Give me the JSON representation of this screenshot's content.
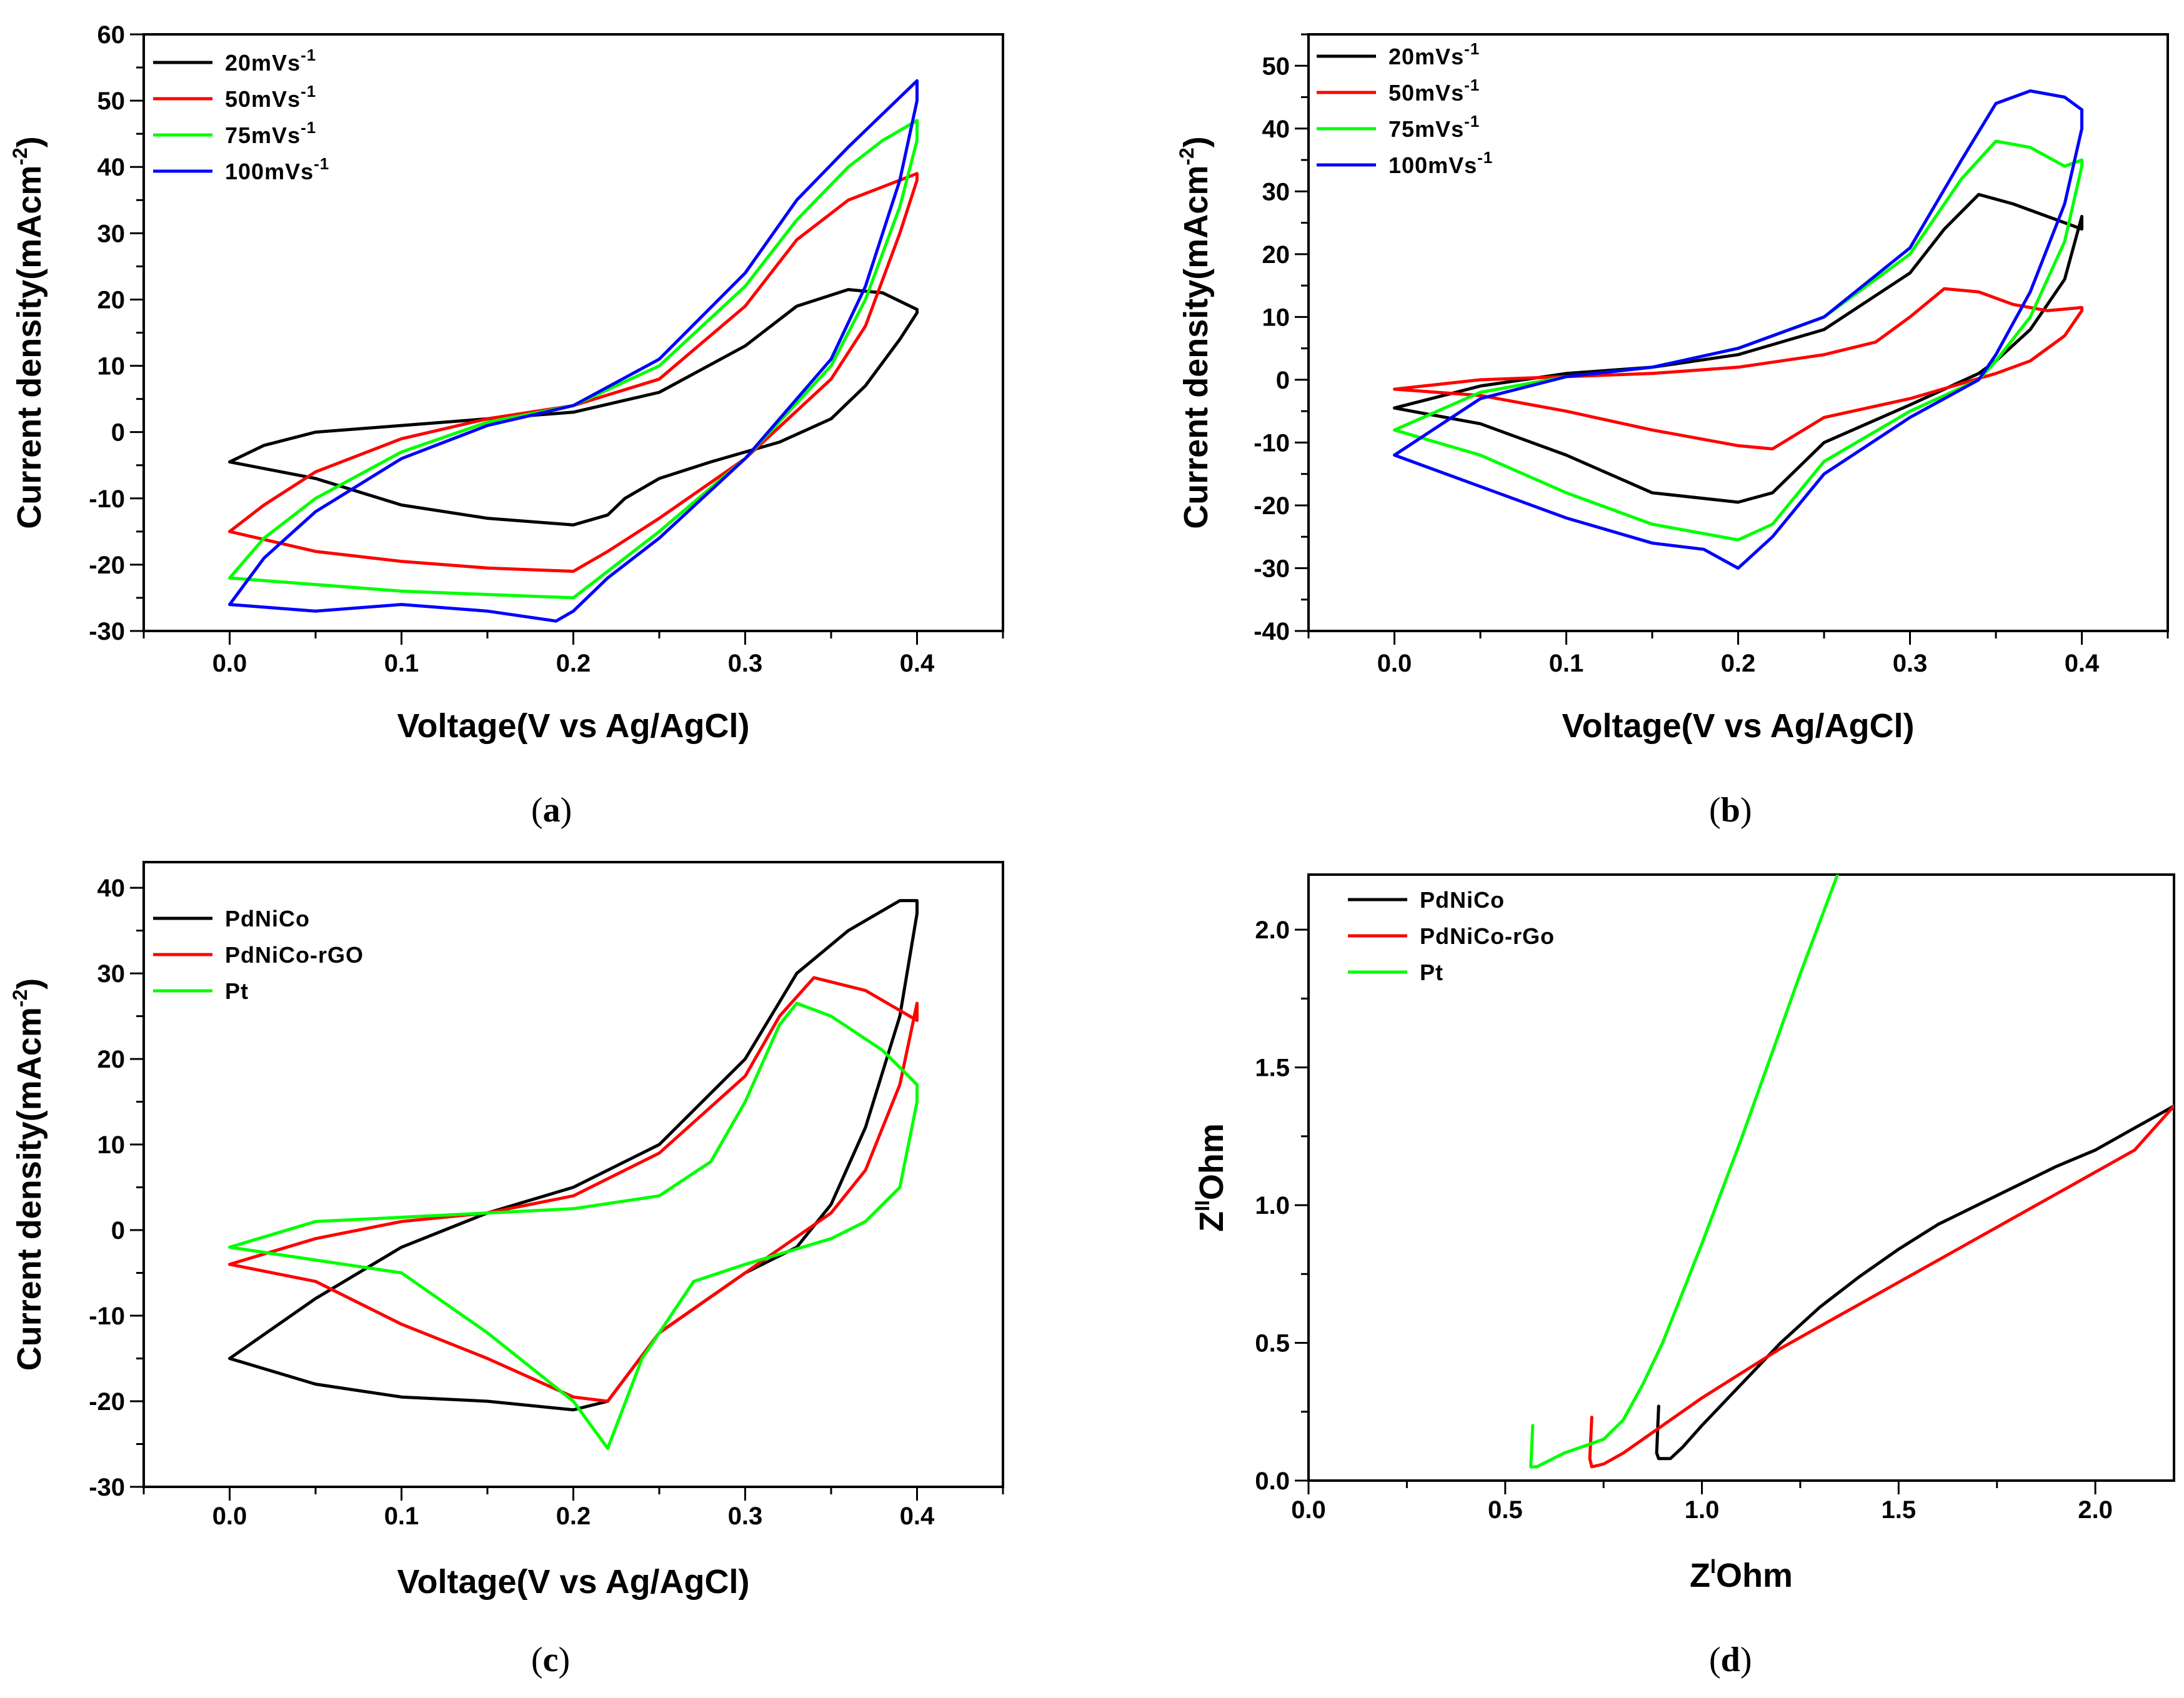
{
  "figure_captions": [
    "a",
    "b",
    "c",
    "d"
  ],
  "chart_data": [
    {
      "id": "a",
      "type": "line",
      "caption": "a",
      "xlabel": "Voltage(V vs Ag/AgCl)",
      "ylabel": "Current density(mAcm",
      "ylabel_sup": "-2",
      "ylabel_close": ")",
      "xlim": [
        -0.05,
        0.45
      ],
      "ylim": [
        -30,
        60
      ],
      "xticks": [
        0.0,
        0.1,
        0.2,
        0.3,
        0.4
      ],
      "xtick_labels": [
        "0.0",
        "0.1",
        "0.2",
        "0.3",
        "0.4"
      ],
      "yticks": [
        -30,
        -20,
        -10,
        0,
        10,
        20,
        30,
        40,
        50,
        60
      ],
      "ytick_labels": [
        "-30",
        "-20",
        "-10",
        "0",
        "10",
        "20",
        "30",
        "40",
        "50",
        "60"
      ],
      "grid": false,
      "legend_position": "top-left",
      "series": [
        {
          "name": "20mVs",
          "sup": "-1",
          "color": "#000000",
          "x": [
            0.0,
            0.02,
            0.05,
            0.1,
            0.15,
            0.2,
            0.25,
            0.3,
            0.33,
            0.36,
            0.38,
            0.4,
            0.4,
            0.39,
            0.37,
            0.35,
            0.32,
            0.3,
            0.28,
            0.25,
            0.23,
            0.22,
            0.2,
            0.15,
            0.1,
            0.05,
            0.0
          ],
          "y": [
            -4.5,
            -2,
            0,
            1,
            2,
            3,
            6,
            13,
            19,
            21.5,
            21,
            18.5,
            18,
            14,
            7,
            2,
            -1.5,
            -3,
            -4.5,
            -7,
            -10,
            -12.5,
            -14,
            -13,
            -11,
            -7,
            -4.5
          ]
        },
        {
          "name": "50mVs",
          "sup": "-1",
          "color": "#ff0000",
          "x": [
            0.0,
            0.02,
            0.05,
            0.1,
            0.15,
            0.2,
            0.25,
            0.3,
            0.33,
            0.36,
            0.38,
            0.4,
            0.4,
            0.39,
            0.37,
            0.35,
            0.3,
            0.25,
            0.22,
            0.2,
            0.15,
            0.1,
            0.05,
            0.0
          ],
          "y": [
            -15,
            -11,
            -6,
            -1,
            2,
            4,
            8,
            19,
            29,
            35,
            37,
            39,
            38,
            30,
            16,
            8,
            -4,
            -13,
            -18,
            -21,
            -20.5,
            -19.5,
            -18,
            -15
          ]
        },
        {
          "name": "75mVs",
          "sup": "-1",
          "color": "#00ff00",
          "x": [
            0.0,
            0.02,
            0.05,
            0.1,
            0.15,
            0.2,
            0.25,
            0.3,
            0.33,
            0.36,
            0.38,
            0.4,
            0.4,
            0.39,
            0.37,
            0.35,
            0.3,
            0.25,
            0.22,
            0.2,
            0.15,
            0.1,
            0.05,
            0.0
          ],
          "y": [
            -22,
            -16,
            -10,
            -3,
            1.5,
            4,
            10,
            22,
            32,
            40,
            44,
            47,
            44,
            34,
            20,
            10,
            -4,
            -15,
            -21,
            -25,
            -24.5,
            -24,
            -23,
            -22
          ]
        },
        {
          "name": "100mVs",
          "sup": "-1",
          "color": "#0000ff",
          "x": [
            0.0,
            0.02,
            0.05,
            0.1,
            0.15,
            0.2,
            0.25,
            0.3,
            0.33,
            0.36,
            0.38,
            0.4,
            0.4,
            0.39,
            0.37,
            0.35,
            0.3,
            0.25,
            0.22,
            0.2,
            0.19,
            0.15,
            0.1,
            0.05,
            0.0
          ],
          "y": [
            -26,
            -19,
            -12,
            -4,
            1,
            4,
            11,
            24,
            35,
            43,
            48,
            53,
            50,
            38,
            22,
            11,
            -4,
            -16,
            -22,
            -27,
            -28.5,
            -27,
            -26,
            -27,
            -26
          ]
        }
      ]
    },
    {
      "id": "b",
      "type": "line",
      "caption": "b",
      "xlabel": "Voltage(V vs Ag/AgCl)",
      "ylabel": "Current density(mAcm",
      "ylabel_sup": "-2",
      "ylabel_close": ")",
      "xlim": [
        -0.05,
        0.45
      ],
      "ylim": [
        -40,
        55
      ],
      "xticks": [
        0.0,
        0.1,
        0.2,
        0.3,
        0.4
      ],
      "xtick_labels": [
        "0.0",
        "0.1",
        "0.2",
        "0.3",
        "0.4"
      ],
      "yticks": [
        -40,
        -30,
        -20,
        -10,
        0,
        10,
        20,
        30,
        40,
        50
      ],
      "ytick_labels": [
        "-40",
        "-30",
        "-20",
        "-10",
        "0",
        "10",
        "20",
        "30",
        "40",
        "50"
      ],
      "grid": false,
      "legend_position": "top-left",
      "series": [
        {
          "name": "20mVs",
          "sup": "-1",
          "color": "#000000",
          "x": [
            0.0,
            0.05,
            0.1,
            0.15,
            0.2,
            0.25,
            0.3,
            0.32,
            0.34,
            0.36,
            0.38,
            0.4,
            0.4,
            0.39,
            0.37,
            0.35,
            0.34,
            0.3,
            0.25,
            0.22,
            0.2,
            0.15,
            0.1,
            0.05,
            0.0
          ],
          "y": [
            -4.5,
            -1,
            1,
            2,
            4,
            8,
            17,
            24,
            29.5,
            28,
            26,
            24,
            26,
            16,
            8,
            3,
            1,
            -4,
            -10,
            -18,
            -19.5,
            -18,
            -12,
            -7,
            -4.5
          ]
        },
        {
          "name": "50mVs",
          "sup": "-1",
          "color": "#ff0000",
          "x": [
            0.0,
            0.05,
            0.1,
            0.15,
            0.2,
            0.25,
            0.28,
            0.3,
            0.32,
            0.34,
            0.36,
            0.38,
            0.4,
            0.4,
            0.39,
            0.37,
            0.35,
            0.3,
            0.25,
            0.22,
            0.2,
            0.15,
            0.1,
            0.05,
            0.0
          ],
          "y": [
            -1.5,
            0,
            0.5,
            1,
            2,
            4,
            6,
            10,
            14.5,
            14,
            12,
            11,
            11.5,
            11,
            7,
            3,
            1,
            -3,
            -6,
            -11,
            -10.5,
            -8,
            -5,
            -2.5,
            -1.5
          ]
        },
        {
          "name": "75mVs",
          "sup": "-1",
          "color": "#00ff00",
          "x": [
            0.0,
            0.05,
            0.1,
            0.15,
            0.2,
            0.25,
            0.3,
            0.33,
            0.35,
            0.37,
            0.39,
            0.4,
            0.4,
            0.39,
            0.37,
            0.35,
            0.34,
            0.3,
            0.25,
            0.22,
            0.2,
            0.15,
            0.1,
            0.05,
            0.0
          ],
          "y": [
            -8,
            -2,
            0.5,
            2,
            5,
            10,
            20,
            32,
            38,
            37,
            34,
            35,
            34,
            22,
            10,
            3,
            0,
            -5,
            -13,
            -23,
            -25.5,
            -23,
            -18,
            -12,
            -8
          ]
        },
        {
          "name": "100mVs",
          "sup": "-1",
          "color": "#0000ff",
          "x": [
            0.0,
            0.05,
            0.1,
            0.15,
            0.2,
            0.25,
            0.3,
            0.33,
            0.35,
            0.37,
            0.39,
            0.4,
            0.4,
            0.39,
            0.37,
            0.35,
            0.34,
            0.3,
            0.25,
            0.22,
            0.2,
            0.18,
            0.15,
            0.1,
            0.05,
            0.0
          ],
          "y": [
            -12,
            -3,
            0.5,
            2,
            5,
            10,
            21,
            35,
            44,
            46,
            45,
            43,
            40,
            28,
            14,
            4,
            0,
            -6,
            -15,
            -25,
            -30,
            -27,
            -26,
            -22,
            -17,
            -12
          ]
        }
      ]
    },
    {
      "id": "c",
      "type": "line",
      "caption": "c",
      "xlabel": "Voltage(V vs Ag/AgCl)",
      "ylabel": "Current density(mAcm",
      "ylabel_sup": "-2",
      "ylabel_close": ")",
      "xlim": [
        -0.05,
        0.45
      ],
      "ylim": [
        -30,
        43
      ],
      "xticks": [
        0.0,
        0.1,
        0.2,
        0.3,
        0.4
      ],
      "xtick_labels": [
        "0.0",
        "0.1",
        "0.2",
        "0.3",
        "0.4"
      ],
      "yticks": [
        -30,
        -20,
        -10,
        0,
        10,
        20,
        30,
        40
      ],
      "ytick_labels": [
        "-30",
        "-20",
        "-10",
        "0",
        "10",
        "20",
        "30",
        "40"
      ],
      "grid": false,
      "legend_position": "top-left",
      "series": [
        {
          "name": "PdNiCo",
          "sup": "",
          "color": "#000000",
          "x": [
            0.0,
            0.05,
            0.1,
            0.15,
            0.2,
            0.25,
            0.3,
            0.33,
            0.36,
            0.39,
            0.4,
            0.4,
            0.39,
            0.37,
            0.35,
            0.33,
            0.3,
            0.25,
            0.22,
            0.2,
            0.15,
            0.1,
            0.05,
            0.0
          ],
          "y": [
            -15,
            -8,
            -2,
            2,
            5,
            10,
            20,
            30,
            35,
            38.5,
            38.5,
            37,
            25,
            12,
            3,
            -2,
            -5,
            -12,
            -20,
            -21,
            -20,
            -19.5,
            -18,
            -15
          ]
        },
        {
          "name": "PdNiCo-rGO",
          "sup": "",
          "color": "#ff0000",
          "x": [
            0.0,
            0.05,
            0.1,
            0.15,
            0.2,
            0.25,
            0.3,
            0.32,
            0.34,
            0.37,
            0.4,
            0.4,
            0.39,
            0.37,
            0.35,
            0.3,
            0.25,
            0.22,
            0.2,
            0.15,
            0.1,
            0.05,
            0.0
          ],
          "y": [
            -4,
            -1,
            1,
            2,
            4,
            9,
            18,
            25,
            29.5,
            28,
            24.5,
            26.5,
            17,
            7,
            2,
            -5,
            -12,
            -20,
            -19.5,
            -15,
            -11,
            -6,
            -4
          ]
        },
        {
          "name": "Pt",
          "sup": "",
          "color": "#00ff00",
          "x": [
            0.0,
            0.05,
            0.1,
            0.15,
            0.2,
            0.25,
            0.28,
            0.3,
            0.32,
            0.33,
            0.35,
            0.38,
            0.4,
            0.4,
            0.39,
            0.37,
            0.35,
            0.3,
            0.27,
            0.24,
            0.22,
            0.2,
            0.15,
            0.1,
            0.05,
            0.0
          ],
          "y": [
            -2,
            1,
            1.5,
            2,
            2.5,
            4,
            8,
            15,
            24,
            26.5,
            25,
            21,
            17,
            15,
            5,
            1,
            -1,
            -4,
            -6,
            -15,
            -25.5,
            -20,
            -12,
            -5,
            -3.5,
            -2
          ]
        }
      ]
    },
    {
      "id": "d",
      "type": "line",
      "caption": "d",
      "xlabel": "Z",
      "xlabel_sup": "I",
      "xlabel_close": "Ohm",
      "ylabel": "Z",
      "ylabel_sup": "II",
      "ylabel_close": "Ohm",
      "xlim": [
        0.0,
        2.2
      ],
      "ylim": [
        0.0,
        2.2
      ],
      "xticks": [
        0.0,
        0.5,
        1.0,
        1.5,
        2.0
      ],
      "xtick_labels": [
        "0.0",
        "0.5",
        "1.0",
        "1.5",
        "2.0"
      ],
      "yticks": [
        0.0,
        0.5,
        1.0,
        1.5,
        2.0
      ],
      "ytick_labels": [
        "0.0",
        "0.5",
        "1.0",
        "1.5",
        "2.0"
      ],
      "grid": false,
      "legend_position": "top-left",
      "series": [
        {
          "name": "PdNiCo",
          "sup": "",
          "color": "#000000",
          "x": [
            0.89,
            0.885,
            0.89,
            0.92,
            0.95,
            1.0,
            1.1,
            1.2,
            1.3,
            1.4,
            1.5,
            1.6,
            1.7,
            1.8,
            1.9,
            2.0,
            2.1,
            2.2
          ],
          "y": [
            0.27,
            0.1,
            0.08,
            0.08,
            0.12,
            0.2,
            0.35,
            0.5,
            0.63,
            0.74,
            0.84,
            0.93,
            1.0,
            1.07,
            1.14,
            1.2,
            1.28,
            1.36
          ]
        },
        {
          "name": "PdNiCo-rGo",
          "sup": "",
          "color": "#ff0000",
          "x": [
            0.72,
            0.715,
            0.72,
            0.75,
            0.8,
            0.9,
            1.0,
            1.1,
            1.2,
            1.3,
            1.4,
            1.5,
            1.6,
            1.7,
            1.8,
            1.9,
            2.0,
            2.1,
            2.2
          ],
          "y": [
            0.23,
            0.08,
            0.05,
            0.06,
            0.1,
            0.2,
            0.3,
            0.39,
            0.48,
            0.56,
            0.64,
            0.72,
            0.8,
            0.88,
            0.96,
            1.04,
            1.12,
            1.2,
            1.36
          ]
        },
        {
          "name": "Pt",
          "sup": "",
          "color": "#00ff00",
          "x": [
            0.57,
            0.565,
            0.58,
            0.65,
            0.75,
            0.8,
            0.85,
            0.9,
            0.95,
            1.0,
            1.05,
            1.1,
            1.15,
            1.2,
            1.25,
            1.3,
            1.35
          ],
          "y": [
            0.2,
            0.05,
            0.05,
            0.1,
            0.15,
            0.22,
            0.35,
            0.5,
            0.68,
            0.86,
            1.05,
            1.24,
            1.44,
            1.64,
            1.84,
            2.03,
            2.22
          ]
        }
      ]
    }
  ]
}
